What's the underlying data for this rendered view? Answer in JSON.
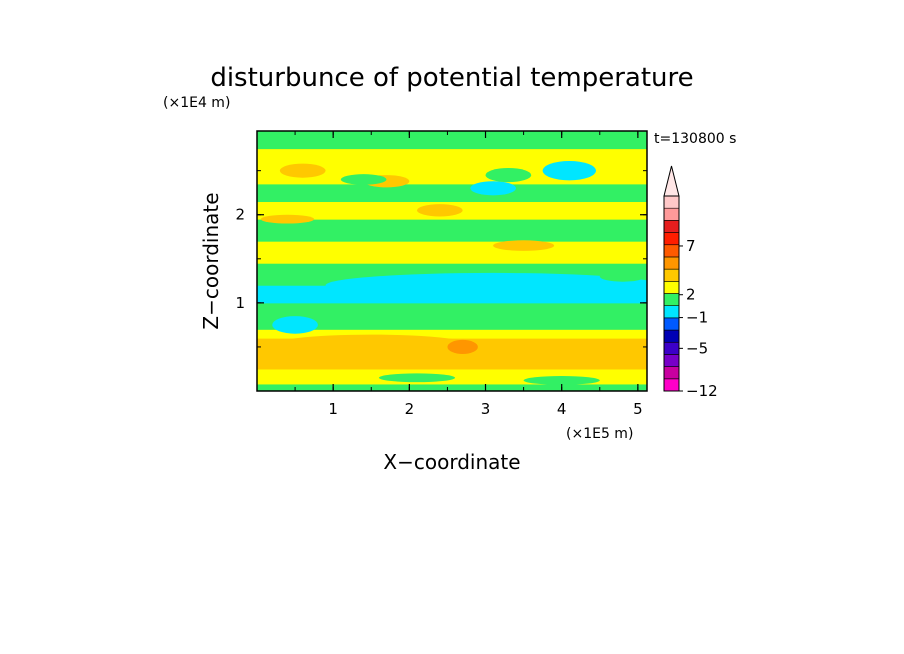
{
  "chart_data": {
    "type": "heatmap",
    "title": "disturbunce of potential temperature",
    "xlabel": "X−coordinate",
    "ylabel": "Z−coordinate",
    "x_unit": "(×1E5 m)",
    "y_unit": "(×1E4 m)",
    "time_label": "t=130800 s",
    "xlim": [
      0,
      5.12
    ],
    "ylim": [
      0,
      2.95
    ],
    "x_ticks": [
      "1",
      "2",
      "3",
      "4",
      "5"
    ],
    "y_ticks": [
      "1",
      "2"
    ],
    "colorbar": {
      "colors": [
        "#ff00c8",
        "#c800a0",
        "#7800c8",
        "#3c00c8",
        "#0000b4",
        "#005aff",
        "#00e6ff",
        "#32f064",
        "#ffff00",
        "#ffc800",
        "#ff9600",
        "#ff5a00",
        "#ff1e00",
        "#e61e1e",
        "#ff9a9a",
        "#ffc8c8"
      ],
      "extend_top_color": "#ffe6e6",
      "labels": [
        "−12",
        "−5",
        "−1",
        "2",
        "7"
      ]
    },
    "bands": [
      {
        "z": [
          0.0,
          0.08
        ],
        "color": "#32f064"
      },
      {
        "z": [
          0.08,
          0.25
        ],
        "color": "#ffff00"
      },
      {
        "z": [
          0.25,
          0.6
        ],
        "color": "#ffc800"
      },
      {
        "z": [
          0.6,
          0.7
        ],
        "color": "#ffff00"
      },
      {
        "z": [
          0.7,
          1.0
        ],
        "color": "#32f064"
      },
      {
        "z": [
          1.0,
          1.2
        ],
        "color": "#00e6ff"
      },
      {
        "z": [
          1.2,
          1.45
        ],
        "color": "#32f064"
      },
      {
        "z": [
          1.45,
          1.7
        ],
        "color": "#ffff00"
      },
      {
        "z": [
          1.7,
          1.95
        ],
        "color": "#32f064"
      },
      {
        "z": [
          1.95,
          2.15
        ],
        "color": "#ffff00"
      },
      {
        "z": [
          2.15,
          2.35
        ],
        "color": "#32f064"
      },
      {
        "z": [
          2.35,
          2.75
        ],
        "color": "#ffff00"
      },
      {
        "z": [
          2.75,
          2.95
        ],
        "color": "#32f064"
      }
    ],
    "blobs": [
      {
        "x": 3.1,
        "z": 1.2,
        "rx": 2.2,
        "rz": 0.14,
        "color": "#00e6ff"
      },
      {
        "x": 0.5,
        "z": 0.75,
        "rx": 0.3,
        "rz": 0.1,
        "color": "#00e6ff"
      },
      {
        "x": 1.5,
        "z": 0.5,
        "rx": 1.4,
        "rz": 0.14,
        "color": "#ffc800"
      },
      {
        "x": 4.4,
        "z": 0.45,
        "rx": 0.7,
        "rz": 0.14,
        "color": "#ffc800"
      },
      {
        "x": 2.7,
        "z": 0.5,
        "rx": 0.2,
        "rz": 0.08,
        "color": "#ff9600"
      },
      {
        "x": 3.1,
        "z": 2.3,
        "rx": 0.3,
        "rz": 0.08,
        "color": "#00e6ff"
      },
      {
        "x": 4.1,
        "z": 2.5,
        "rx": 0.35,
        "rz": 0.11,
        "color": "#00e6ff"
      },
      {
        "x": 0.6,
        "z": 2.5,
        "rx": 0.3,
        "rz": 0.08,
        "color": "#ffc800"
      },
      {
        "x": 1.7,
        "z": 2.38,
        "rx": 0.3,
        "rz": 0.07,
        "color": "#ffc800"
      },
      {
        "x": 3.3,
        "z": 2.45,
        "rx": 0.3,
        "rz": 0.08,
        "color": "#32f064"
      },
      {
        "x": 3.5,
        "z": 1.65,
        "rx": 0.4,
        "rz": 0.06,
        "color": "#ffc800"
      },
      {
        "x": 2.4,
        "z": 2.05,
        "rx": 0.3,
        "rz": 0.07,
        "color": "#ffc800"
      },
      {
        "x": 1.4,
        "z": 2.4,
        "rx": 0.3,
        "rz": 0.06,
        "color": "#32f064"
      },
      {
        "x": 0.4,
        "z": 1.95,
        "rx": 0.35,
        "rz": 0.05,
        "color": "#ffc800"
      },
      {
        "x": 4.8,
        "z": 1.3,
        "rx": 0.3,
        "rz": 0.06,
        "color": "#32f064"
      },
      {
        "x": 2.1,
        "z": 0.15,
        "rx": 0.5,
        "rz": 0.05,
        "color": "#32f064"
      },
      {
        "x": 4.0,
        "z": 0.12,
        "rx": 0.5,
        "rz": 0.05,
        "color": "#32f064"
      }
    ]
  }
}
